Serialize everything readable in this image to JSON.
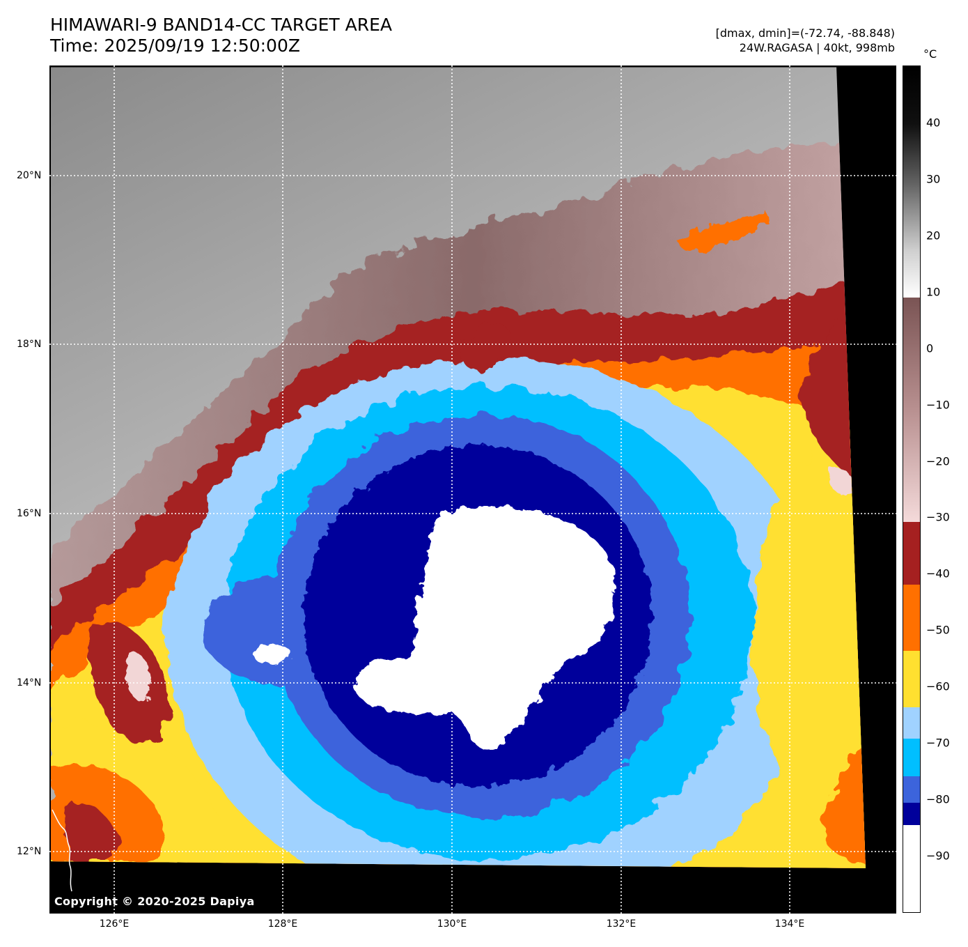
{
  "header": {
    "title_line1": "HIMAWARI-9 BAND14-CC TARGET AREA",
    "title_line2": "Time: 2025/09/19 12:50:00Z",
    "info_line1": "[dmax, dmin]=(-72.74, -88.848)",
    "info_line2": "24W.RAGASA | 40kt, 998mb"
  },
  "map": {
    "lat_labels": [
      "20°N",
      "18°N",
      "16°N",
      "14°N",
      "12°N"
    ],
    "lon_labels": [
      "126°E",
      "128°E",
      "130°E",
      "132°E",
      "134°E"
    ],
    "lat_values": [
      20,
      18,
      16,
      14,
      12
    ],
    "lon_values": [
      126,
      128,
      130,
      132,
      134
    ],
    "copyright": "Copyright © 2020-2025 Dapiya"
  },
  "colorbar": {
    "unit": "°C",
    "tick_labels": [
      "40",
      "30",
      "20",
      "10",
      "0",
      "−10",
      "−20",
      "−30",
      "−40",
      "−50",
      "−60",
      "−70",
      "−80",
      "−90"
    ],
    "tick_values": [
      40,
      30,
      20,
      10,
      0,
      -10,
      -20,
      -30,
      -40,
      -50,
      -60,
      -70,
      -80,
      -90
    ],
    "range": [
      -100,
      50
    ],
    "colors": {
      "white_core": "#ffffff",
      "navy": "#00009b",
      "royal_blue": "#3c64dc",
      "deep_sky": "#00bfff",
      "light_sky": "#a0d2ff",
      "yellow": "#ffe030",
      "orange": "#ff7000",
      "dark_red": "#a52020",
      "pink": "#f2d6d6"
    }
  }
}
